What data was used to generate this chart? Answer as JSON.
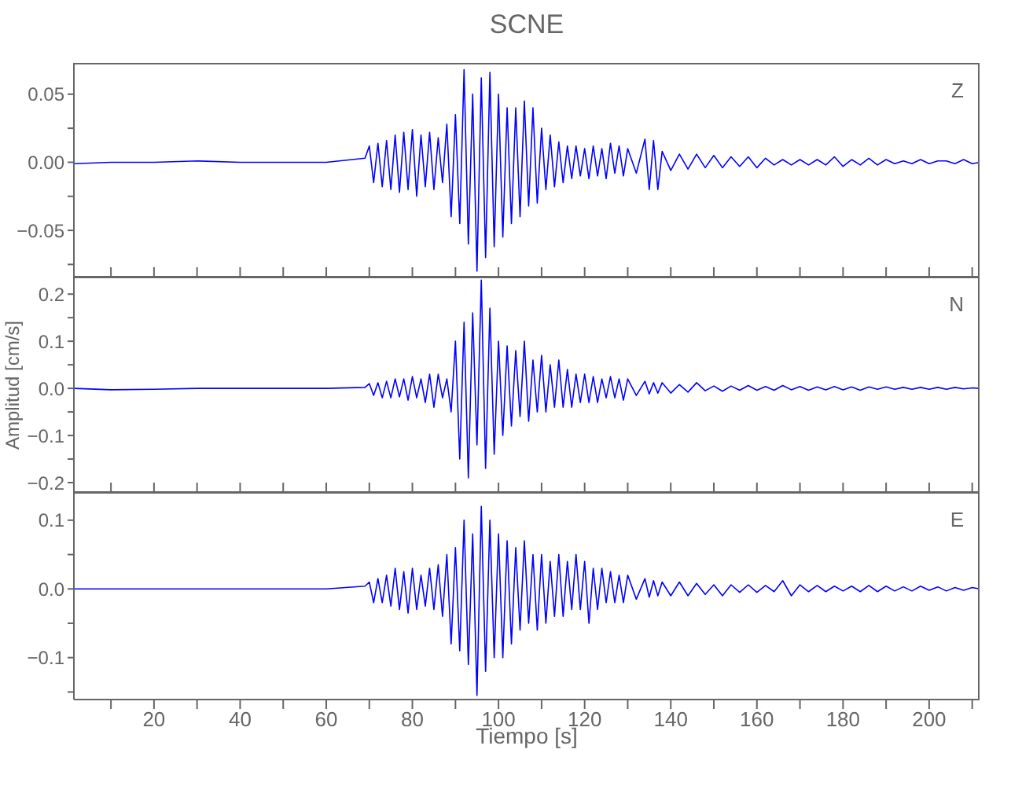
{
  "chart_data": [
    {
      "type": "line",
      "title": "SCNE",
      "annotations": [
        "Z"
      ],
      "tick_labels": "y",
      "color": "#0000ff",
      "x": [
        1.4,
        10,
        20,
        30,
        40,
        50,
        60,
        69,
        70,
        71,
        72,
        73,
        74,
        75,
        76,
        77,
        78,
        79,
        80,
        81,
        82,
        83,
        84,
        85,
        86,
        87,
        88,
        89,
        90,
        91,
        92,
        93,
        94,
        95,
        96,
        97,
        98,
        99,
        100,
        101,
        102,
        103,
        104,
        105,
        106,
        107,
        108,
        109,
        110,
        111,
        112,
        113,
        114,
        115,
        116,
        117,
        118,
        119,
        120,
        121,
        122,
        123,
        124,
        125,
        126,
        127,
        128,
        129,
        130,
        132,
        134,
        135,
        136,
        137,
        138,
        140,
        142,
        144,
        146,
        148,
        150,
        152,
        154,
        156,
        158,
        160,
        162,
        164,
        166,
        168,
        170,
        172,
        174,
        176,
        178,
        180,
        182,
        184,
        186,
        188,
        190,
        192,
        194,
        196,
        198,
        200,
        202,
        204,
        206,
        208,
        210,
        211.7
      ],
      "values": [
        -0.001,
        0,
        0,
        0.001,
        0,
        0,
        0,
        0.003,
        0.012,
        -0.015,
        0.014,
        -0.018,
        0.016,
        -0.02,
        0.02,
        -0.022,
        0.022,
        -0.02,
        0.024,
        -0.025,
        0.02,
        -0.018,
        0.022,
        -0.02,
        0.018,
        -0.015,
        0.028,
        -0.04,
        0.035,
        -0.045,
        0.068,
        -0.06,
        0.05,
        -0.08,
        0.062,
        -0.07,
        0.066,
        -0.062,
        0.05,
        -0.055,
        0.04,
        -0.045,
        0.04,
        -0.04,
        0.045,
        -0.032,
        0.04,
        -0.03,
        0.025,
        -0.02,
        0.02,
        -0.018,
        0.015,
        -0.015,
        0.012,
        -0.012,
        0.012,
        -0.01,
        0.01,
        -0.012,
        0.012,
        -0.01,
        0.01,
        -0.012,
        0.014,
        -0.008,
        0.012,
        -0.01,
        0.01,
        -0.008,
        0.017,
        -0.02,
        0.016,
        -0.02,
        0.008,
        -0.006,
        0.006,
        -0.005,
        0.006,
        -0.004,
        0.005,
        -0.004,
        0.004,
        -0.003,
        0.004,
        -0.004,
        0.003,
        -0.002,
        0.002,
        -0.002,
        0.002,
        -0.002,
        0.002,
        -0.002,
        0.004,
        -0.003,
        0.002,
        -0.002,
        0.003,
        -0.002,
        0.002,
        -0.001,
        0.001,
        -0.001,
        0.002,
        -0.001,
        0.001,
        0.001,
        -0.001,
        0.002,
        -0.001,
        0
      ],
      "xlim": [
        1.4,
        211.7
      ],
      "xticks": [
        {
          "value": 10,
          "label": null
        },
        20,
        {
          "value": 30,
          "label": null
        },
        40,
        {
          "value": 50,
          "label": null
        },
        60,
        {
          "value": 70,
          "label": null
        },
        80,
        {
          "value": 90,
          "label": null
        },
        100,
        {
          "value": 110,
          "label": null
        },
        120,
        {
          "value": 130,
          "label": null
        },
        140,
        {
          "value": 150,
          "label": null
        },
        160,
        {
          "value": 170,
          "label": null
        },
        180,
        {
          "value": 190,
          "label": null
        },
        200,
        {
          "value": 210,
          "label": null
        }
      ],
      "ylim": [
        -0.084,
        0.073
      ],
      "yticks": [
        {
          "value": -0.075,
          "label": null
        },
        -0.05,
        {
          "value": -0.025,
          "label": null
        },
        {
          "value": 0,
          "label": "0.00"
        },
        {
          "value": 0.025,
          "label": null
        },
        0.05
      ]
    },
    {
      "type": "line",
      "ylabel": "Amplitud [cm/s]",
      "annotations": [
        "N"
      ],
      "tick_labels": "y",
      "color": "#0000ff",
      "x": [
        1.4,
        10,
        20,
        30,
        40,
        50,
        60,
        69,
        70,
        71,
        72,
        73,
        74,
        75,
        76,
        77,
        78,
        79,
        80,
        81,
        82,
        83,
        84,
        85,
        86,
        87,
        88,
        89,
        90,
        91,
        92,
        93,
        94,
        95,
        96,
        97,
        98,
        99,
        100,
        101,
        102,
        103,
        104,
        105,
        106,
        107,
        108,
        109,
        110,
        111,
        112,
        113,
        114,
        115,
        116,
        117,
        118,
        119,
        120,
        121,
        122,
        123,
        124,
        125,
        126,
        127,
        128,
        129,
        130,
        132,
        134,
        135,
        136,
        137,
        138,
        140,
        142,
        144,
        146,
        148,
        150,
        152,
        154,
        156,
        158,
        160,
        162,
        164,
        166,
        168,
        170,
        172,
        174,
        176,
        178,
        180,
        182,
        184,
        186,
        188,
        190,
        192,
        194,
        196,
        198,
        200,
        202,
        204,
        206,
        208,
        210,
        211.7
      ],
      "values": [
        0,
        -0.003,
        -0.002,
        0,
        0,
        0,
        0,
        0.002,
        0.01,
        -0.015,
        0.012,
        -0.02,
        0.015,
        -0.02,
        0.02,
        -0.018,
        0.02,
        -0.025,
        0.025,
        -0.02,
        0.02,
        -0.03,
        0.03,
        -0.04,
        0.03,
        -0.02,
        0.02,
        -0.05,
        0.1,
        -0.15,
        0.14,
        -0.19,
        0.16,
        -0.12,
        0.23,
        -0.17,
        0.17,
        -0.14,
        0.1,
        -0.1,
        0.09,
        -0.08,
        0.08,
        -0.06,
        0.1,
        -0.07,
        0.06,
        -0.05,
        0.07,
        -0.05,
        0.05,
        -0.04,
        0.06,
        -0.04,
        0.04,
        -0.04,
        0.03,
        -0.03,
        0.03,
        -0.03,
        0.025,
        -0.03,
        0.02,
        -0.02,
        0.025,
        -0.02,
        0.02,
        -0.025,
        0.02,
        -0.015,
        0.015,
        -0.012,
        0.012,
        -0.01,
        0.012,
        -0.01,
        0.008,
        -0.008,
        0.012,
        -0.005,
        0.005,
        -0.006,
        0.005,
        -0.004,
        0.006,
        -0.004,
        0.004,
        -0.004,
        0.006,
        -0.003,
        0.004,
        -0.004,
        0.003,
        -0.003,
        0.004,
        -0.003,
        0.003,
        -0.004,
        0.003,
        -0.002,
        0.003,
        -0.002,
        0.002,
        -0.002,
        0.002,
        -0.002,
        0.002,
        -0.002,
        0.002,
        -0.001,
        0.001,
        0
      ],
      "xlim": [
        1.4,
        211.7
      ],
      "xticks": [
        {
          "value": 10,
          "label": null
        },
        20,
        {
          "value": 30,
          "label": null
        },
        40,
        {
          "value": 50,
          "label": null
        },
        60,
        {
          "value": 70,
          "label": null
        },
        80,
        {
          "value": 90,
          "label": null
        },
        100,
        {
          "value": 110,
          "label": null
        },
        120,
        {
          "value": 130,
          "label": null
        },
        140,
        {
          "value": 150,
          "label": null
        },
        160,
        {
          "value": 170,
          "label": null
        },
        180,
        {
          "value": 190,
          "label": null
        },
        200,
        {
          "value": 210,
          "label": null
        }
      ],
      "ylim": [
        -0.22,
        0.237
      ],
      "yticks": [
        -0.2,
        {
          "value": -0.15,
          "label": null
        },
        -0.1,
        {
          "value": -0.05,
          "label": null
        },
        {
          "value": 0,
          "label": "0.0"
        },
        {
          "value": 0.05,
          "label": null
        },
        0.1,
        {
          "value": 0.15,
          "label": null
        },
        0.2
      ]
    },
    {
      "type": "line",
      "xlabel": "Tiempo [s]",
      "annotations": [
        "E"
      ],
      "color": "#0000ff",
      "x": [
        1.4,
        10,
        20,
        30,
        40,
        50,
        60,
        69,
        70,
        71,
        72,
        73,
        74,
        75,
        76,
        77,
        78,
        79,
        80,
        81,
        82,
        83,
        84,
        85,
        86,
        87,
        88,
        89,
        90,
        91,
        92,
        93,
        94,
        95,
        96,
        97,
        98,
        99,
        100,
        101,
        102,
        103,
        104,
        105,
        106,
        107,
        108,
        109,
        110,
        111,
        112,
        113,
        114,
        115,
        116,
        117,
        118,
        119,
        120,
        121,
        122,
        123,
        124,
        125,
        126,
        127,
        128,
        129,
        130,
        132,
        134,
        135,
        136,
        137,
        138,
        140,
        142,
        144,
        146,
        148,
        150,
        152,
        154,
        156,
        158,
        160,
        162,
        164,
        166,
        168,
        170,
        172,
        174,
        176,
        178,
        180,
        182,
        184,
        186,
        188,
        190,
        192,
        194,
        196,
        198,
        200,
        202,
        204,
        206,
        208,
        210,
        211.7
      ],
      "values": [
        0,
        0,
        0,
        0,
        0,
        0,
        0,
        0.004,
        0.01,
        -0.02,
        0.015,
        -0.02,
        0.02,
        -0.025,
        0.03,
        -0.03,
        0.025,
        -0.035,
        0.03,
        -0.03,
        0.02,
        -0.025,
        0.03,
        -0.03,
        0.035,
        -0.04,
        0.05,
        -0.08,
        0.06,
        -0.09,
        0.1,
        -0.11,
        0.08,
        -0.155,
        0.12,
        -0.12,
        0.1,
        -0.1,
        0.08,
        -0.1,
        0.07,
        -0.08,
        0.06,
        -0.06,
        0.07,
        -0.05,
        0.05,
        -0.06,
        0.05,
        -0.05,
        0.04,
        -0.04,
        0.05,
        -0.04,
        0.04,
        -0.03,
        0.05,
        -0.03,
        0.04,
        -0.05,
        0.03,
        -0.03,
        0.03,
        -0.02,
        0.025,
        -0.02,
        0.02,
        -0.02,
        0.02,
        -0.015,
        0.015,
        -0.012,
        0.012,
        -0.01,
        0.01,
        -0.01,
        0.01,
        -0.01,
        0.008,
        -0.008,
        0.006,
        -0.01,
        0.006,
        -0.005,
        0.006,
        -0.005,
        0.005,
        -0.004,
        0.012,
        -0.01,
        0.006,
        -0.004,
        0.005,
        -0.004,
        0.004,
        -0.003,
        0.004,
        -0.004,
        0.005,
        -0.004,
        0.004,
        -0.003,
        0.003,
        -0.003,
        0.004,
        -0.002,
        0.003,
        -0.003,
        0.002,
        -0.002,
        0.002,
        0
      ],
      "xlim": [
        1.4,
        211.7
      ],
      "xticks": [
        {
          "value": 10,
          "label": null
        },
        20,
        {
          "value": 30,
          "label": null
        },
        40,
        {
          "value": 50,
          "label": null
        },
        60,
        {
          "value": 70,
          "label": null
        },
        80,
        {
          "value": 90,
          "label": null
        },
        100,
        {
          "value": 110,
          "label": null
        },
        120,
        {
          "value": 130,
          "label": null
        },
        140,
        {
          "value": 150,
          "label": null
        },
        160,
        {
          "value": 170,
          "label": null
        },
        180,
        {
          "value": 190,
          "label": null
        },
        200,
        {
          "value": 210,
          "label": null
        }
      ],
      "ylim": [
        -0.161,
        0.141
      ],
      "yticks": [
        {
          "value": -0.15,
          "label": null
        },
        -0.1,
        {
          "value": -0.05,
          "label": null
        },
        {
          "value": 0,
          "label": "0.0"
        },
        {
          "value": 0.05,
          "label": null
        },
        0.1
      ]
    }
  ]
}
